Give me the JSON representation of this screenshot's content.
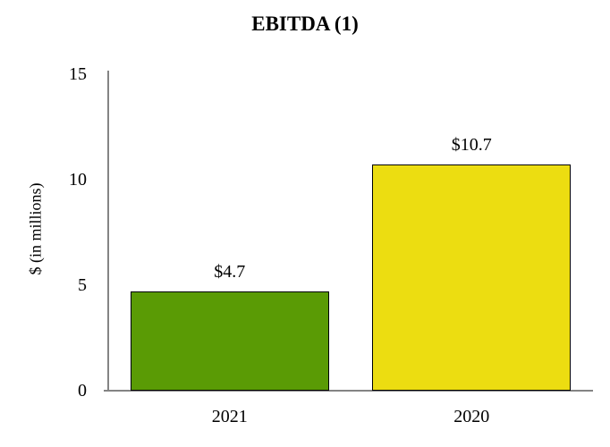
{
  "chart_data": {
    "type": "bar",
    "title": "EBITDA (1)",
    "ylabel": "$ (in millions)",
    "xlabel": "",
    "categories": [
      "2021",
      "2020"
    ],
    "values": [
      4.7,
      10.7
    ],
    "value_labels": [
      "$4.7",
      "$10.7"
    ],
    "bar_colors": [
      "#5a9b05",
      "#ecdd11"
    ],
    "bar_border_color": "#000000",
    "axis_color": "#848484",
    "yticks": [
      0,
      5,
      10,
      15
    ],
    "ytick_labels": [
      "0",
      "5",
      "10",
      "15"
    ],
    "ylim": [
      0,
      15
    ],
    "grid": false,
    "legend": false
  }
}
